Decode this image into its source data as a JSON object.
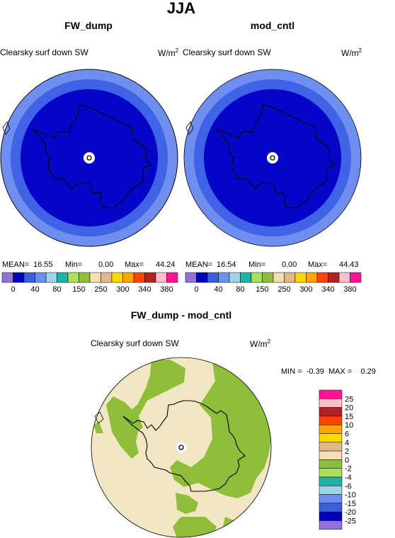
{
  "figure_title": "JJA",
  "panels": [
    {
      "title": "FW_dump",
      "field": "Clearsky surf down SW",
      "units": "W/m",
      "units_exp": "2",
      "stats": {
        "mean_label": "MEAN=",
        "mean": "16.55",
        "min_label": "Min=",
        "min": "0.00",
        "max_label": "Max=",
        "max": "44.24"
      }
    },
    {
      "title": "mod_cntl",
      "field": "Clearsky surf down SW",
      "units": "W/m",
      "units_exp": "2",
      "stats": {
        "mean_label": "MEAN=",
        "mean": "16.54",
        "min_label": "Min=",
        "min": "0.00",
        "max_label": "Max=",
        "max": "44.43"
      }
    }
  ],
  "diff_panel": {
    "title": "FW_dump - mod_cntl",
    "field": "Clearsky surf down SW",
    "units": "W/m",
    "units_exp": "2",
    "stats_text": "MIN =  -0.39  MAX =    0.29"
  },
  "colors": {
    "abs_outer": "#6f8ff0",
    "abs_mid": "#3f63e4",
    "abs_inner": "#0505c8",
    "diff_base": "#f3e6c3",
    "diff_green": "#8fbf3a"
  },
  "chart_data": [
    {
      "type": "heatmap",
      "title": "FW_dump",
      "subtitle": "Clearsky surf down SW",
      "units": "W/m^2",
      "projection": "north polar stereographic",
      "stats": {
        "mean": 16.55,
        "min": 0.0,
        "max": 44.24
      },
      "colorbar": {
        "ticks": [
          "0",
          "40",
          "80",
          "150",
          "250",
          "300",
          "340",
          "380"
        ],
        "colors": [
          "#9370db",
          "#0000c0",
          "#3a5fdc",
          "#6d8ff2",
          "#9fd3e6",
          "#20b2aa",
          "#a8e05f",
          "#8fbf3a",
          "#f5deb3",
          "#deb887",
          "#ffd700",
          "#ffa500",
          "#ff4500",
          "#b22222",
          "#ffc0cb",
          "#ff1493"
        ]
      }
    },
    {
      "type": "heatmap",
      "title": "mod_cntl",
      "subtitle": "Clearsky surf down SW",
      "units": "W/m^2",
      "projection": "north polar stereographic",
      "stats": {
        "mean": 16.54,
        "min": 0.0,
        "max": 44.43
      },
      "colorbar": {
        "ticks": [
          "0",
          "40",
          "80",
          "150",
          "250",
          "300",
          "340",
          "380"
        ],
        "colors": [
          "#9370db",
          "#0000c0",
          "#3a5fdc",
          "#6d8ff2",
          "#9fd3e6",
          "#20b2aa",
          "#a8e05f",
          "#8fbf3a",
          "#f5deb3",
          "#deb887",
          "#ffd700",
          "#ffa500",
          "#ff4500",
          "#b22222",
          "#ffc0cb",
          "#ff1493"
        ]
      }
    },
    {
      "type": "heatmap",
      "title": "FW_dump - mod_cntl",
      "subtitle": "Clearsky surf down SW",
      "units": "W/m^2",
      "projection": "north polar stereographic",
      "stats": {
        "min": -0.39,
        "max": 0.29
      },
      "colorbar": {
        "ticks": [
          "25",
          "20",
          "15",
          "10",
          "6",
          "4",
          "2",
          "0",
          "-2",
          "-4",
          "-6",
          "-10",
          "-15",
          "-20",
          "-25"
        ],
        "colors": [
          "#ff1493",
          "#ffc0cb",
          "#b22222",
          "#ff4500",
          "#ffa500",
          "#ffd700",
          "#deb887",
          "#f5deb3",
          "#8fbf3a",
          "#a8e05f",
          "#20b2aa",
          "#9fd3e6",
          "#6d8ff2",
          "#3a5fdc",
          "#0000c0",
          "#9370db"
        ]
      }
    }
  ]
}
